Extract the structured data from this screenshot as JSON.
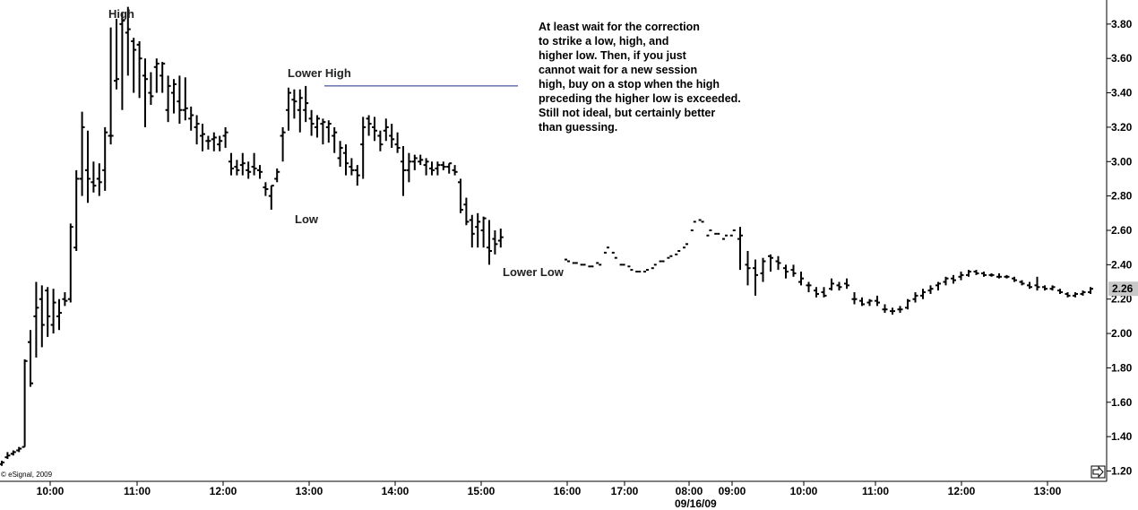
{
  "chart_data": {
    "type": "ohlc-bar",
    "ylim": [
      1.14,
      3.94
    ],
    "y_ticks": [
      "1.20",
      "1.40",
      "1.60",
      "1.80",
      "2.00",
      "2.20",
      "2.40",
      "2.60",
      "2.80",
      "3.00",
      "3.20",
      "3.40",
      "3.60",
      "3.80"
    ],
    "x_ticks": [
      "10:00",
      "11:00",
      "12:00",
      "13:00",
      "14:00",
      "15:00",
      "16:00",
      "17:00",
      "08:00",
      "09:00",
      "10:00",
      "11:00",
      "12:00",
      "13:00"
    ],
    "date_label": "09/16/09",
    "last_price": "2.26",
    "copyright": "© eSignal, 2009",
    "annotations": {
      "high": "High",
      "low": "Low",
      "lower_high": "Lower High",
      "lower_low": "Lower Low"
    },
    "note_lines": [
      "At least wait for the correction",
      "to strike a low, high, and",
      "higher low. Then, if you just",
      "cannot wait for a new session",
      "high, buy on a stop when the high",
      "preceding the higher low is exceeded.",
      "Still not ideal, but certainly better",
      "than guessing."
    ],
    "lower_high_level": 3.44,
    "bars": [
      [
        1.24,
        1.26,
        1.23,
        1.25
      ],
      [
        1.28,
        1.31,
        1.27,
        1.29
      ],
      [
        1.3,
        1.32,
        1.29,
        1.31
      ],
      [
        1.32,
        1.34,
        1.31,
        1.33
      ],
      [
        1.34,
        1.85,
        1.34,
        1.84
      ],
      [
        1.95,
        2.02,
        1.69,
        1.71
      ],
      [
        2.1,
        2.3,
        1.86,
        2.15
      ],
      [
        2.2,
        2.28,
        1.92,
        2.05
      ],
      [
        2.25,
        2.27,
        1.98,
        2.1
      ],
      [
        2.05,
        2.26,
        2.0,
        2.18
      ],
      [
        2.1,
        2.2,
        2.02,
        2.12
      ],
      [
        2.2,
        2.24,
        2.16,
        2.19
      ],
      [
        2.2,
        2.64,
        2.18,
        2.62
      ],
      [
        2.5,
        2.95,
        2.48,
        2.9
      ],
      [
        2.9,
        3.29,
        2.8,
        3.2
      ],
      [
        2.95,
        3.18,
        2.76,
        2.9
      ],
      [
        2.88,
        3.0,
        2.82,
        2.86
      ],
      [
        2.9,
        2.99,
        2.8,
        2.88
      ],
      [
        2.95,
        3.2,
        2.83,
        3.17
      ],
      [
        3.15,
        3.78,
        3.1,
        3.15
      ],
      [
        3.47,
        3.83,
        3.42,
        3.48
      ],
      [
        3.8,
        3.87,
        3.3,
        3.82
      ],
      [
        3.75,
        3.9,
        3.5,
        3.77
      ],
      [
        3.7,
        3.72,
        3.4,
        3.65
      ],
      [
        3.68,
        3.7,
        3.37,
        3.6
      ],
      [
        3.5,
        3.6,
        3.2,
        3.48
      ],
      [
        3.4,
        3.52,
        3.33,
        3.38
      ],
      [
        3.55,
        3.6,
        3.4,
        3.57
      ],
      [
        3.5,
        3.58,
        3.4,
        3.57
      ],
      [
        3.3,
        3.5,
        3.23,
        3.44
      ],
      [
        3.4,
        3.48,
        3.28,
        3.45
      ],
      [
        3.35,
        3.5,
        3.22,
        3.3
      ],
      [
        3.3,
        3.49,
        3.24,
        3.31
      ],
      [
        3.25,
        3.32,
        3.18,
        3.27
      ],
      [
        3.2,
        3.27,
        3.1,
        3.22
      ],
      [
        3.15,
        3.22,
        3.06,
        3.16
      ],
      [
        3.12,
        3.15,
        3.07,
        3.12
      ],
      [
        3.13,
        3.17,
        3.06,
        3.14
      ],
      [
        3.1,
        3.15,
        3.06,
        3.12
      ],
      [
        3.15,
        3.2,
        3.08,
        3.17
      ],
      [
        3.0,
        3.05,
        2.92,
        2.96
      ],
      [
        2.97,
        3.01,
        2.92,
        2.95
      ],
      [
        2.98,
        3.05,
        2.92,
        2.99
      ],
      [
        2.95,
        3.0,
        2.9,
        2.94
      ],
      [
        2.97,
        3.05,
        2.92,
        2.96
      ],
      [
        2.95,
        2.98,
        2.9,
        2.94
      ],
      [
        2.85,
        2.88,
        2.8,
        2.84
      ],
      [
        2.8,
        2.86,
        2.72,
        2.86
      ],
      [
        2.9,
        2.96,
        2.88,
        2.94
      ],
      [
        3.15,
        3.2,
        3.0,
        3.17
      ],
      [
        3.3,
        3.43,
        3.18,
        3.4
      ],
      [
        3.36,
        3.42,
        3.25,
        3.35
      ],
      [
        3.3,
        3.42,
        3.17,
        3.37
      ],
      [
        3.3,
        3.44,
        3.23,
        3.34
      ],
      [
        3.25,
        3.3,
        3.15,
        3.22
      ],
      [
        3.2,
        3.27,
        3.14,
        3.25
      ],
      [
        3.22,
        3.25,
        3.1,
        3.23
      ],
      [
        3.2,
        3.24,
        3.11,
        3.22
      ],
      [
        3.15,
        3.2,
        3.05,
        3.17
      ],
      [
        3.02,
        3.12,
        2.97,
        3.08
      ],
      [
        3.05,
        3.1,
        2.92,
        2.99
      ],
      [
        2.97,
        3.02,
        2.92,
        2.95
      ],
      [
        2.95,
        2.98,
        2.86,
        2.92
      ],
      [
        3.1,
        3.26,
        2.9,
        3.2
      ],
      [
        3.25,
        3.27,
        3.15,
        3.22
      ],
      [
        3.2,
        3.26,
        3.12,
        3.18
      ],
      [
        3.15,
        3.18,
        3.06,
        3.1
      ],
      [
        3.18,
        3.25,
        3.12,
        3.2
      ],
      [
        3.15,
        3.22,
        3.08,
        3.13
      ],
      [
        3.1,
        3.17,
        3.05,
        3.08
      ],
      [
        3.0,
        3.09,
        2.8,
        2.95
      ],
      [
        2.95,
        3.05,
        2.88,
        3.0
      ],
      [
        3.0,
        3.04,
        2.95,
        3.02
      ],
      [
        3.0,
        3.04,
        2.98,
        3.01
      ],
      [
        2.98,
        3.02,
        2.92,
        3.0
      ],
      [
        2.96,
        3.0,
        2.92,
        2.95
      ],
      [
        2.96,
        3.0,
        2.92,
        2.98
      ],
      [
        2.98,
        3.0,
        2.95,
        2.97
      ],
      [
        2.97,
        2.99,
        2.93,
        2.99
      ],
      [
        2.95,
        2.98,
        2.92,
        2.94
      ],
      [
        2.88,
        2.9,
        2.7,
        2.72
      ],
      [
        2.75,
        2.79,
        2.63,
        2.65
      ],
      [
        2.66,
        2.69,
        2.5,
        2.58
      ],
      [
        2.62,
        2.7,
        2.5,
        2.65
      ],
      [
        2.6,
        2.68,
        2.5,
        2.67
      ],
      [
        2.5,
        2.66,
        2.4,
        2.48
      ],
      [
        2.55,
        2.6,
        2.46,
        2.52
      ],
      [
        2.54,
        2.61,
        2.5,
        2.56
      ]
    ],
    "ticks_16h": [
      [
        2.43,
        2.42
      ],
      [
        2.41,
        2.41
      ],
      [
        2.4,
        2.4
      ],
      [
        2.39,
        2.39
      ],
      [
        2.41,
        2.4
      ],
      [
        2.47,
        2.5
      ],
      [
        2.47,
        2.44
      ],
      [
        2.4,
        2.4
      ],
      [
        2.39,
        2.37
      ],
      [
        2.36,
        2.36
      ],
      [
        2.36,
        2.37
      ],
      [
        2.38,
        2.4
      ],
      [
        2.42,
        2.42
      ],
      [
        2.44,
        2.45
      ],
      [
        2.46,
        2.48
      ],
      [
        2.5,
        2.52
      ],
      [
        2.6,
        2.65
      ],
      [
        2.66,
        2.65
      ],
      [
        2.57,
        2.6
      ],
      [
        2.58,
        2.58
      ],
      [
        2.55,
        2.57
      ],
      [
        2.57,
        2.6
      ]
    ],
    "bars_day2": [
      [
        2.55,
        2.62,
        2.37,
        2.57
      ],
      [
        2.4,
        2.48,
        2.28,
        2.38
      ],
      [
        2.38,
        2.43,
        2.22,
        2.34
      ],
      [
        2.35,
        2.44,
        2.3,
        2.42
      ],
      [
        2.45,
        2.46,
        2.36,
        2.44
      ],
      [
        2.42,
        2.45,
        2.37,
        2.41
      ],
      [
        2.38,
        2.4,
        2.32,
        2.36
      ],
      [
        2.37,
        2.4,
        2.33,
        2.35
      ],
      [
        2.3,
        2.36,
        2.28,
        2.32
      ],
      [
        2.28,
        2.3,
        2.24,
        2.28
      ],
      [
        2.25,
        2.27,
        2.21,
        2.23
      ],
      [
        2.24,
        2.27,
        2.21,
        2.22
      ],
      [
        2.26,
        2.32,
        2.25,
        2.29
      ],
      [
        2.28,
        2.3,
        2.25,
        2.27
      ],
      [
        2.29,
        2.32,
        2.26,
        2.28
      ],
      [
        2.2,
        2.24,
        2.17,
        2.2
      ],
      [
        2.19,
        2.21,
        2.16,
        2.17
      ],
      [
        2.18,
        2.2,
        2.16,
        2.19
      ],
      [
        2.19,
        2.22,
        2.16,
        2.18
      ],
      [
        2.14,
        2.17,
        2.12,
        2.14
      ],
      [
        2.13,
        2.15,
        2.11,
        2.13
      ],
      [
        2.14,
        2.16,
        2.12,
        2.14
      ],
      [
        2.15,
        2.2,
        2.14,
        2.19
      ],
      [
        2.2,
        2.24,
        2.18,
        2.22
      ],
      [
        2.22,
        2.26,
        2.2,
        2.24
      ],
      [
        2.25,
        2.28,
        2.23,
        2.26
      ],
      [
        2.28,
        2.3,
        2.25,
        2.29
      ],
      [
        2.3,
        2.33,
        2.28,
        2.32
      ],
      [
        2.32,
        2.34,
        2.29,
        2.31
      ],
      [
        2.33,
        2.36,
        2.31,
        2.34
      ],
      [
        2.34,
        2.37,
        2.33,
        2.36
      ],
      [
        2.36,
        2.37,
        2.34,
        2.35
      ],
      [
        2.35,
        2.36,
        2.33,
        2.34
      ],
      [
        2.34,
        2.35,
        2.33,
        2.34
      ],
      [
        2.33,
        2.35,
        2.32,
        2.33
      ],
      [
        2.33,
        2.34,
        2.32,
        2.33
      ],
      [
        2.32,
        2.33,
        2.3,
        2.31
      ],
      [
        2.3,
        2.31,
        2.28,
        2.29
      ],
      [
        2.28,
        2.3,
        2.26,
        2.27
      ],
      [
        2.28,
        2.33,
        2.25,
        2.27
      ],
      [
        2.27,
        2.28,
        2.25,
        2.26
      ],
      [
        2.26,
        2.28,
        2.25,
        2.27
      ],
      [
        2.25,
        2.26,
        2.23,
        2.24
      ],
      [
        2.23,
        2.24,
        2.21,
        2.22
      ],
      [
        2.22,
        2.24,
        2.21,
        2.23
      ],
      [
        2.23,
        2.25,
        2.22,
        2.24
      ],
      [
        2.24,
        2.27,
        2.23,
        2.26
      ]
    ]
  }
}
